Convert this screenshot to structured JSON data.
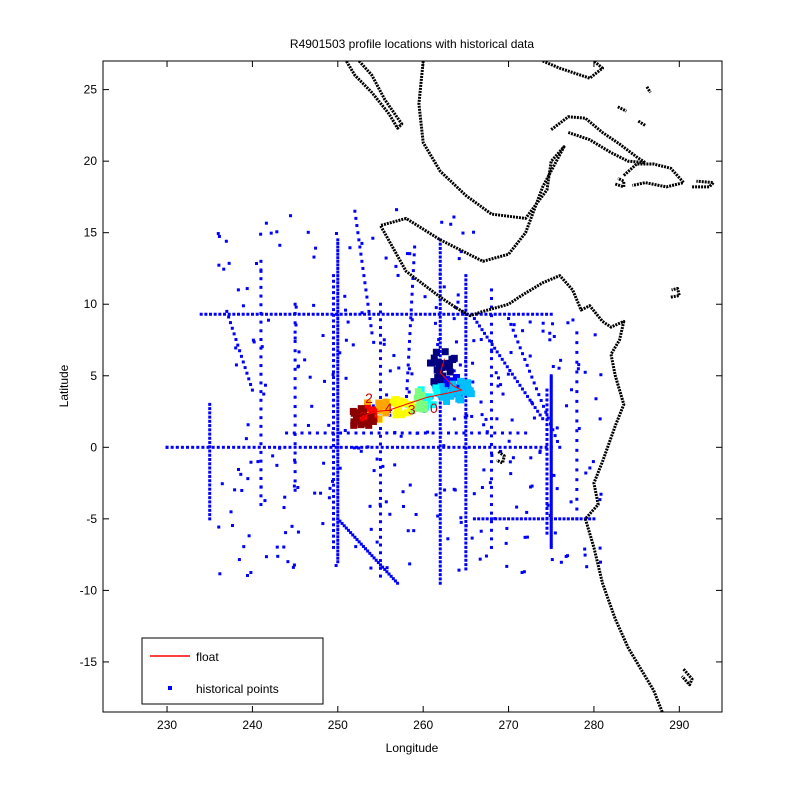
{
  "chart_data": {
    "type": "scatter",
    "title": "R4901503 profile locations with historical data",
    "xlabel": "Longitude",
    "ylabel": "Latitude",
    "xlim": [
      222.5,
      295
    ],
    "ylim": [
      -18.5,
      27
    ],
    "xticks": [
      230,
      240,
      250,
      260,
      270,
      280,
      290
    ],
    "yticks": [
      -15,
      -10,
      -5,
      0,
      5,
      10,
      15,
      20,
      25
    ],
    "grid": false,
    "legend": {
      "placement": "bottom-left",
      "entries": [
        {
          "label": "float",
          "color": "#ff0000",
          "marker": "line"
        },
        {
          "label": "historical points",
          "color": "#0000ff",
          "marker": "dot"
        }
      ]
    },
    "historical_color": "#0000ff",
    "coast_color": "#000000",
    "float_label_color": "#cc0000",
    "series": [
      {
        "name": "historical points",
        "tracks": [
          {
            "type": "line",
            "from": [
              234,
              9.3
            ],
            "to": [
              275,
              9.3
            ],
            "step": 0.55
          },
          {
            "type": "line",
            "from": [
              250,
              14.5
            ],
            "to": [
              250,
              -8
            ],
            "step": 0.25
          },
          {
            "type": "line",
            "from": [
              249.5,
              12
            ],
            "to": [
              249.5,
              -7
            ],
            "step": 0.4
          },
          {
            "type": "line",
            "from": [
              235,
              3
            ],
            "to": [
              235,
              -5
            ],
            "step": 0.3
          },
          {
            "type": "line",
            "from": [
              262,
              14.5
            ],
            "to": [
              262,
              -9.5
            ],
            "step": 0.3
          },
          {
            "type": "line",
            "from": [
              265,
              12
            ],
            "to": [
              265,
              -8.5
            ],
            "step": 0.3
          },
          {
            "type": "line",
            "from": [
              275,
              5
            ],
            "to": [
              275,
              -7
            ],
            "step": 0.15
          },
          {
            "type": "line",
            "from": [
              274.5,
              4
            ],
            "to": [
              274.5,
              -6
            ],
            "step": 0.35
          },
          {
            "type": "line",
            "from": [
              230,
              0
            ],
            "to": [
              275,
              0
            ],
            "step": 0.6
          },
          {
            "type": "line",
            "from": [
              244,
              1
            ],
            "to": [
              272,
              1
            ],
            "step": 0.9
          },
          {
            "type": "line",
            "from": [
              266,
              -5
            ],
            "to": [
              280,
              -5
            ],
            "step": 0.5
          },
          {
            "type": "line",
            "from": [
              250,
              -5
            ],
            "to": [
              257,
              -9.5
            ],
            "step": 0.3
          },
          {
            "type": "line",
            "from": [
              266,
              9
            ],
            "to": [
              274,
              2
            ],
            "step": 0.4
          },
          {
            "type": "line",
            "from": [
              237,
              9.5
            ],
            "to": [
              240,
              4
            ],
            "step": 0.45
          },
          {
            "type": "line",
            "from": [
              252,
              16.5
            ],
            "to": [
              254,
              8
            ],
            "step": 0.5
          },
          {
            "type": "line",
            "from": [
              259,
              14
            ],
            "to": [
              258,
              3
            ],
            "step": 0.55
          },
          {
            "type": "line",
            "from": [
              270,
              9
            ],
            "to": [
              276,
              0
            ],
            "step": 0.5
          },
          {
            "type": "line",
            "from": [
              255,
              10
            ],
            "to": [
              255,
              -9
            ],
            "step": 0.55
          },
          {
            "type": "line",
            "from": [
              241,
              13
            ],
            "to": [
              241,
              -4
            ],
            "step": 0.6
          },
          {
            "type": "line",
            "from": [
              245,
              10
            ],
            "to": [
              245,
              -3
            ],
            "step": 0.65
          },
          {
            "type": "line",
            "from": [
              268,
              11
            ],
            "to": [
              268,
              -7
            ],
            "step": 0.6
          },
          {
            "type": "line",
            "from": [
              278,
              8
            ],
            "to": [
              278,
              -5
            ],
            "step": 0.7
          },
          {
            "type": "scatter",
            "xlim": [
              236,
              281
            ],
            "ylim": [
              -9,
              17
            ],
            "count": 340,
            "seed": 7
          }
        ]
      },
      {
        "name": "float",
        "color_ramp": [
          "#000080",
          "#0000ff",
          "#00bfff",
          "#00ffff",
          "#7fff7f",
          "#ffff00",
          "#ffa500",
          "#ff0000",
          "#8b0000"
        ],
        "path": [
          [
            262.5,
            6.2
          ],
          [
            262,
            5.2
          ],
          [
            263.5,
            4.3
          ],
          [
            264.5,
            4.0
          ],
          [
            263,
            3.8
          ],
          [
            260.5,
            3.5
          ],
          [
            259,
            3.2
          ],
          [
            257.5,
            2.9
          ],
          [
            256,
            2.6
          ],
          [
            254.5,
            2.5
          ],
          [
            253.5,
            2.3
          ],
          [
            253,
            2.1
          ]
        ],
        "labels": [
          "2",
          "2",
          "3",
          "4",
          "0"
        ],
        "label_positions": [
          [
            253.2,
            3.1
          ],
          [
            252.5,
            1.8
          ],
          [
            258.2,
            2.3
          ],
          [
            255.5,
            2.4
          ],
          [
            260.8,
            2.4
          ]
        ]
      }
    ],
    "coastlines": [
      [
        [
          252.5,
          27
        ],
        [
          254,
          26
        ],
        [
          255.5,
          24.3
        ],
        [
          257.5,
          22.6
        ],
        [
          257,
          22.3
        ],
        [
          256,
          23.3
        ],
        [
          254,
          24.8
        ],
        [
          252,
          26
        ],
        [
          251,
          27
        ]
      ],
      [
        [
          260,
          27
        ],
        [
          259.5,
          24
        ],
        [
          260,
          21.3
        ],
        [
          262,
          19.3
        ],
        [
          265,
          17.6
        ],
        [
          268,
          16.3
        ],
        [
          272,
          16
        ],
        [
          274.5,
          18
        ],
        [
          275,
          20
        ],
        [
          276.5,
          21
        ],
        [
          274,
          18.2
        ],
        [
          272,
          15
        ],
        [
          270,
          13.5
        ],
        [
          267,
          13
        ],
        [
          262,
          14.5
        ],
        [
          258,
          16
        ],
        [
          255,
          15.5
        ],
        [
          258,
          12.3
        ],
        [
          262,
          10.5
        ],
        [
          264,
          9.7
        ],
        [
          265.5,
          9.2
        ],
        [
          267,
          9.5
        ],
        [
          270,
          10
        ],
        [
          271.5,
          10.6
        ],
        [
          274,
          11.5
        ],
        [
          276,
          12
        ],
        [
          277.5,
          11
        ],
        [
          278.5,
          9.6
        ],
        [
          279.5,
          9.9
        ],
        [
          281,
          8.8
        ],
        [
          282,
          8.4
        ],
        [
          283.5,
          8.8
        ],
        [
          283,
          7.5
        ],
        [
          282,
          6.5
        ],
        [
          282.5,
          5
        ],
        [
          283.5,
          3
        ],
        [
          282.5,
          1.5
        ],
        [
          281,
          -1
        ],
        [
          280,
          -2.5
        ],
        [
          280.5,
          -4
        ],
        [
          279,
          -5
        ],
        [
          280,
          -7
        ],
        [
          281,
          -9.5
        ],
        [
          282.5,
          -12
        ],
        [
          284,
          -14
        ],
        [
          285.5,
          -15.5
        ],
        [
          287,
          -17
        ],
        [
          288,
          -18.5
        ]
      ],
      [
        [
          274,
          27
        ],
        [
          276,
          26.5
        ],
        [
          279.5,
          25.8
        ],
        [
          281,
          26.5
        ],
        [
          280,
          27
        ]
      ],
      [
        [
          275,
          22.2
        ],
        [
          277,
          23.1
        ],
        [
          279,
          23
        ],
        [
          281,
          22
        ],
        [
          283,
          21.2
        ],
        [
          285,
          20.3
        ],
        [
          286,
          19.9
        ],
        [
          284,
          20
        ],
        [
          282,
          20.6
        ],
        [
          279.5,
          21.5
        ],
        [
          277,
          22
        ]
      ],
      [
        [
          283.5,
          19
        ],
        [
          285,
          19.8
        ],
        [
          287,
          19.8
        ],
        [
          289,
          19.5
        ],
        [
          290.5,
          18.5
        ],
        [
          288.5,
          18.2
        ],
        [
          286,
          18.5
        ],
        [
          284.5,
          18.3
        ]
      ],
      [
        [
          291.5,
          18.2
        ],
        [
          293.5,
          18.2
        ],
        [
          294,
          18.5
        ],
        [
          292,
          18.6
        ]
      ],
      [
        [
          282.5,
          18.4
        ],
        [
          283.5,
          18.2
        ],
        [
          283.5,
          18.6
        ],
        [
          282.8,
          18.8
        ]
      ],
      [
        [
          289,
          10.5
        ],
        [
          290,
          10.6
        ],
        [
          289.8,
          11.1
        ],
        [
          289.1,
          11
        ]
      ],
      [
        [
          290.5,
          -15.5
        ],
        [
          291.5,
          -16.2
        ],
        [
          291.2,
          -16.6
        ],
        [
          290.3,
          -16
        ]
      ],
      [
        [
          268.8,
          -0.3
        ],
        [
          269.5,
          -0.6
        ],
        [
          269.3,
          -1.1
        ],
        [
          268.6,
          -0.9
        ]
      ],
      [
        [
          282.8,
          23.8
        ],
        [
          283.8,
          23.5
        ]
      ],
      [
        [
          285.2,
          22.8
        ],
        [
          286,
          22.5
        ]
      ],
      [
        [
          286.2,
          25.2
        ],
        [
          286.6,
          24.8
        ]
      ]
    ]
  }
}
